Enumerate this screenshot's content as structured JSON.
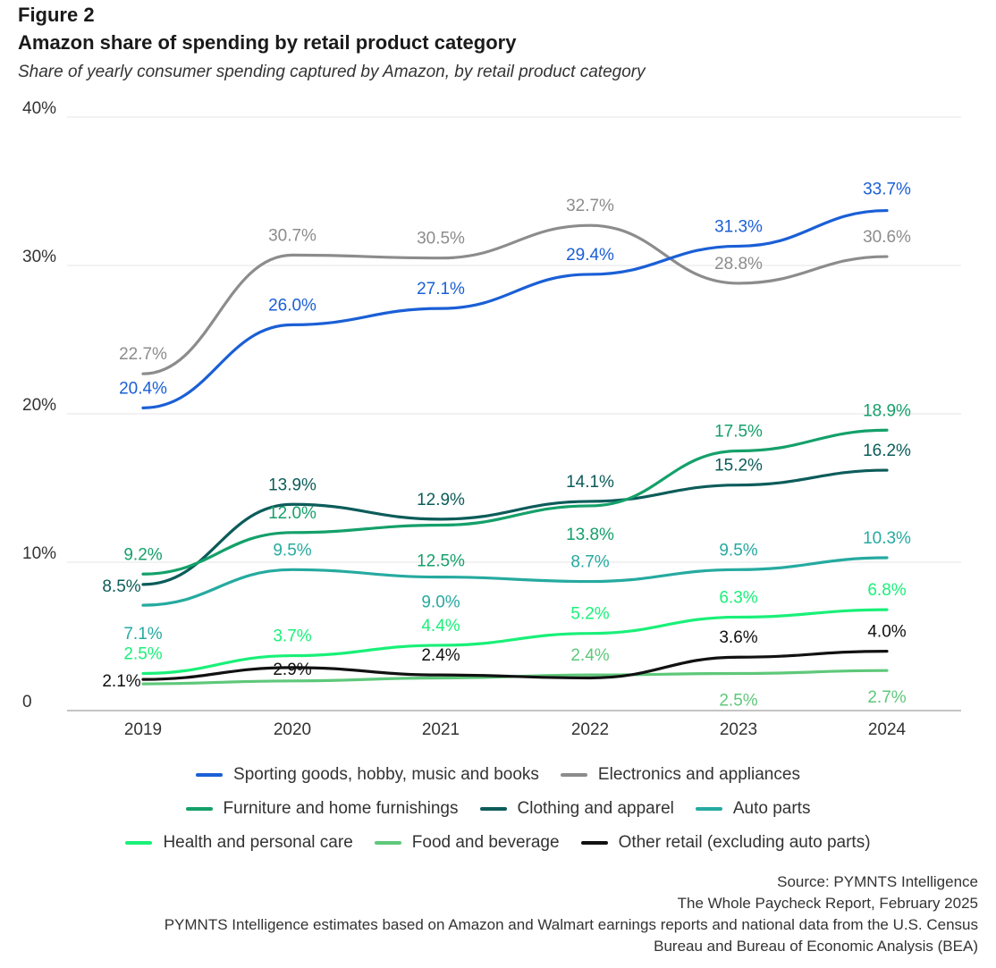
{
  "figure_label": "Figure 2",
  "chart_data": {
    "type": "line",
    "title": "Amazon share of spending by retail product category",
    "subtitle": "Share of yearly consumer spending captured by Amazon, by retail product category",
    "x": [
      "2019",
      "2020",
      "2021",
      "2022",
      "2023",
      "2024"
    ],
    "ylim": [
      0,
      40
    ],
    "yticks": [
      0,
      10,
      20,
      30,
      40
    ],
    "ytick_labels": [
      "0",
      "10%",
      "20%",
      "30%",
      "40%"
    ],
    "xlabel": "",
    "ylabel": "",
    "grid": true,
    "legend_position": "bottom",
    "series": [
      {
        "name": "Sporting goods, hobby, music and books",
        "color": "#1a5fd6",
        "values": [
          20.4,
          26.0,
          27.1,
          29.4,
          31.3,
          33.7
        ],
        "labels": [
          "20.4%",
          "26.0%",
          "27.1%",
          "29.4%",
          "31.3%",
          "33.7%"
        ]
      },
      {
        "name": "Electronics and appliances",
        "color": "#8c8c8c",
        "values": [
          22.7,
          30.7,
          30.5,
          32.7,
          28.8,
          30.6
        ],
        "labels": [
          "22.7%",
          "30.7%",
          "30.5%",
          "32.7%",
          "28.8%",
          "30.6%"
        ]
      },
      {
        "name": "Furniture and home furnishings",
        "color": "#14a06a",
        "values": [
          9.2,
          12.0,
          12.5,
          13.8,
          17.5,
          18.9
        ],
        "labels": [
          "9.2%",
          "12.0%",
          "12.5%",
          "13.8%",
          "17.5%",
          "18.9%"
        ]
      },
      {
        "name": "Clothing and apparel",
        "color": "#0c5c5a",
        "values": [
          8.5,
          13.9,
          12.9,
          14.1,
          15.2,
          16.2
        ],
        "labels": [
          "8.5%",
          "13.9%",
          "12.9%",
          "14.1%",
          "15.2%",
          "16.2%"
        ]
      },
      {
        "name": "Auto parts",
        "color": "#26aaa0",
        "values": [
          7.1,
          9.5,
          9.0,
          8.7,
          9.5,
          10.3
        ],
        "labels": [
          "7.1%",
          "9.5%",
          "9.0%",
          "8.7%",
          "9.5%",
          "10.3%"
        ]
      },
      {
        "name": "Health and personal care",
        "color": "#19f078",
        "values": [
          2.5,
          3.7,
          4.4,
          5.2,
          6.3,
          6.8
        ],
        "labels": [
          "2.5%",
          "3.7%",
          "4.4%",
          "5.2%",
          "6.3%",
          "6.8%"
        ]
      },
      {
        "name": "Food and beverage",
        "color": "#5ec87a",
        "values": [
          1.8,
          2.0,
          2.2,
          2.4,
          2.5,
          2.7
        ],
        "labels": [
          "",
          "",
          "",
          "2.4%",
          "2.5%",
          "2.7%"
        ]
      },
      {
        "name": "Other retail (excluding auto parts)",
        "color": "#111111",
        "values": [
          2.1,
          2.9,
          2.4,
          2.2,
          3.6,
          4.0
        ],
        "labels": [
          "2.1%",
          "2.9%",
          "2.4%",
          "",
          "3.6%",
          "4.0%"
        ]
      }
    ]
  },
  "source": {
    "line1": "Source: PYMNTS Intelligence",
    "line2": "The Whole Paycheck Report, February 2025",
    "line3": "PYMNTS Intelligence estimates based on Amazon and Walmart earnings reports and national data from the U.S. Census",
    "line4": "Bureau and Bureau of Economic Analysis (BEA)"
  }
}
